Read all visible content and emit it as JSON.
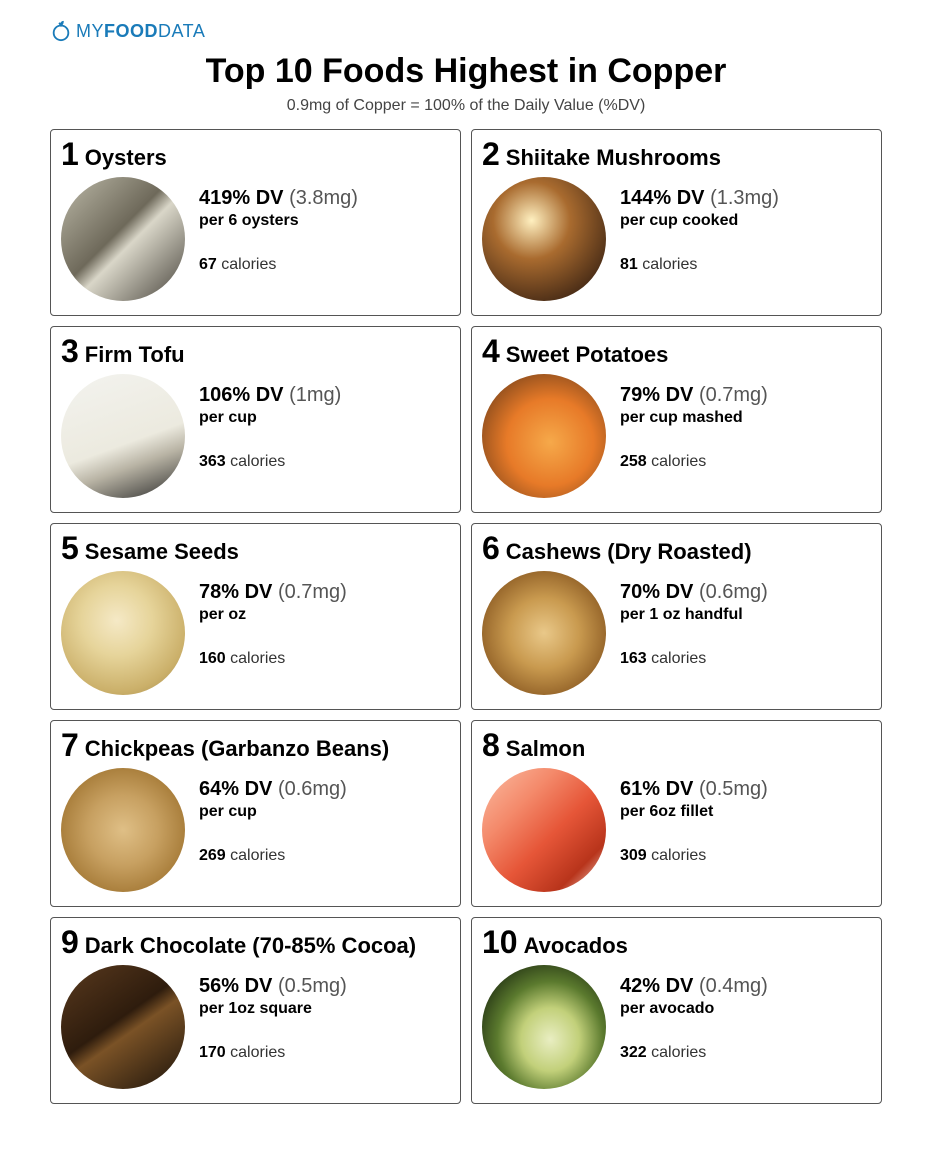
{
  "logo": {
    "my": "MY",
    "food": "FOOD",
    "data": "DATA",
    "color": "#1a7bb9"
  },
  "title": "Top 10 Foods Highest in Copper",
  "subtitle": "0.9mg of Copper = 100% of the Daily Value (%DV)",
  "calories_label": "calories",
  "foods": [
    {
      "rank": "1",
      "name": "Oysters",
      "dv_pct": "419% DV",
      "dv_mg": "(3.8mg)",
      "serving": "per 6 oysters",
      "calories": "67",
      "thumb_bg": "linear-gradient(135deg,#bdbaa9 0%,#6e695a 45%,#d9d6c8 55%,#46423a 100%)"
    },
    {
      "rank": "2",
      "name": "Shiitake Mushrooms",
      "dv_pct": "144% DV",
      "dv_mg": "(1.3mg)",
      "serving": "per cup cooked",
      "calories": "81",
      "thumb_bg": "radial-gradient(circle at 40% 35%,#fff0c0 0%,#a96b2f 35%,#3a2212 85%)"
    },
    {
      "rank": "3",
      "name": "Firm Tofu",
      "dv_pct": "106% DV",
      "dv_mg": "(1mg)",
      "serving": "per cup",
      "calories": "363",
      "thumb_bg": "linear-gradient(160deg,#f3f3ef 0%,#eceadf 55%,#b8b3a4 70%,#2b2b2b 100%)"
    },
    {
      "rank": "4",
      "name": "Sweet Potatoes",
      "dv_pct": "79% DV",
      "dv_mg": "(0.7mg)",
      "serving": "per cup mashed",
      "calories": "258",
      "thumb_bg": "radial-gradient(circle at 55% 55%,#f6a94a 0%,#e77a28 45%,#8a4b1c 80%,#3b2410 100%)"
    },
    {
      "rank": "5",
      "name": "Sesame Seeds",
      "dv_pct": "78% DV",
      "dv_mg": "(0.7mg)",
      "serving": "per oz",
      "calories": "160",
      "thumb_bg": "radial-gradient(circle at 45% 40%,#f5e9c6 0%,#e6d49a 35%,#cbb06a 70%,#9d8247 100%)"
    },
    {
      "rank": "6",
      "name": "Cashews (Dry Roasted)",
      "dv_pct": "70% DV",
      "dv_mg": "(0.6mg)",
      "serving": "per 1 oz handful",
      "calories": "163",
      "thumb_bg": "radial-gradient(circle at 50% 50%,#e9c889 0%,#c99a4f 40%,#8b5a22 80%,#3f2a10 100%)"
    },
    {
      "rank": "7",
      "name": "Chickpeas (Garbanzo Beans)",
      "dv_pct": "64% DV",
      "dv_mg": "(0.6mg)",
      "serving": "per cup",
      "calories": "269",
      "thumb_bg": "radial-gradient(circle at 50% 50%,#dfbf86 0%,#c7a061 40%,#a67b38 75%,#6f4d20 100%)"
    },
    {
      "rank": "8",
      "name": "Salmon",
      "dv_pct": "61% DV",
      "dv_mg": "(0.5mg)",
      "serving": "per 6oz fillet",
      "calories": "309",
      "thumb_bg": "linear-gradient(135deg,#fbbda3 0%,#f48a6b 30%,#e65638 55%,#b8341b 80%,#ffe4d6 100%)"
    },
    {
      "rank": "9",
      "name": "Dark Chocolate (70-85% Cocoa)",
      "dv_pct": "56% DV",
      "dv_mg": "(0.5mg)",
      "serving": "per 1oz square",
      "calories": "170",
      "thumb_bg": "linear-gradient(145deg,#5a3a1e 0%,#2e1c0d 45%,#7a5226 55%,#1b120a 100%)"
    },
    {
      "rank": "10",
      "name": "Avocados",
      "dv_pct": "42% DV",
      "dv_mg": "(0.4mg)",
      "serving": "per avocado",
      "calories": "322",
      "thumb_bg": "radial-gradient(ellipse at 55% 60%,#e9eec2 0%,#c2d07a 30%,#5b7a2e 55%,#1d2b10 85%)"
    }
  ]
}
